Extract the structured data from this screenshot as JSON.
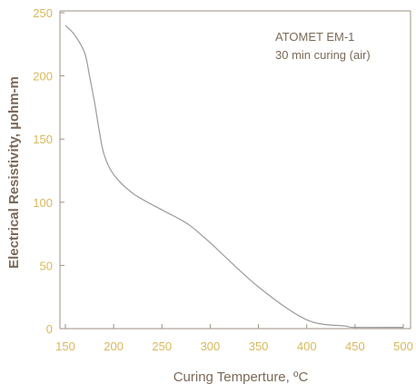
{
  "chart_data": {
    "type": "line",
    "title": "",
    "xlabel": "Curing Temperture, ºC",
    "ylabel": "Electrical Resistivity, µohm-m",
    "xlim": [
      150,
      500
    ],
    "ylim": [
      0,
      250
    ],
    "x_ticks": [
      "150",
      "200",
      "250",
      "300",
      "350",
      "400",
      "450",
      "500"
    ],
    "y_ticks": [
      "0",
      "50",
      "100",
      "150",
      "200",
      "250"
    ],
    "annotation": [
      "ATOMET EM-1",
      "30 min curing (air)"
    ],
    "grid": false,
    "series": [
      {
        "x": [
          150,
          160,
          170,
          175,
          180,
          185,
          190,
          200,
          220,
          250,
          270,
          280,
          300,
          350,
          400,
          440,
          450,
          500
        ],
        "y": [
          240,
          232,
          218,
          200,
          180,
          157,
          138,
          122,
          107,
          94,
          86,
          81,
          68,
          33,
          7,
          2,
          1,
          1
        ]
      }
    ],
    "colors": {
      "line": "#9b9b9b",
      "axis": "#9d9282",
      "tick_text": "#d8b85a",
      "title_text": "#7a6a58"
    }
  }
}
